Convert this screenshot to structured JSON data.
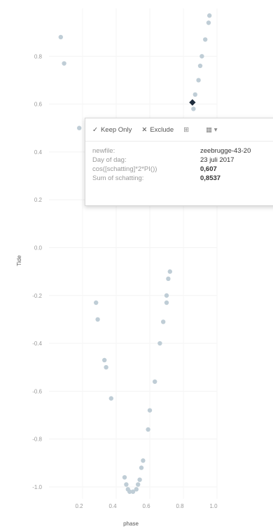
{
  "chart_data": {
    "type": "scatter",
    "xlabel": "phase",
    "ylabel": "Tide",
    "x_ticks": [
      "0.2",
      "0.4",
      "0.6",
      "0.8",
      "1.0"
    ],
    "y_ticks": [
      "0.8",
      "0.6",
      "0.4",
      "0.2",
      "0.0",
      "-0.2",
      "-0.4",
      "-0.6",
      "-0.8",
      "-1.0"
    ],
    "xlim": [
      0.0,
      1.0
    ],
    "ylim": [
      -1.05,
      1.0
    ],
    "grid": true,
    "point_color": "#bfcdd6",
    "selected_color": "#1f2d3d",
    "points": [
      {
        "x": 0.07,
        "y": 0.88
      },
      {
        "x": 0.09,
        "y": 0.77
      },
      {
        "x": 0.18,
        "y": 0.5
      },
      {
        "x": 0.86,
        "y": 0.58
      },
      {
        "x": 0.87,
        "y": 0.64
      },
      {
        "x": 0.9,
        "y": 0.76
      },
      {
        "x": 0.91,
        "y": 0.8
      },
      {
        "x": 0.93,
        "y": 0.87
      },
      {
        "x": 0.95,
        "y": 0.94
      },
      {
        "x": 0.955,
        "y": 0.97
      },
      {
        "x": 0.89,
        "y": 0.7
      },
      {
        "x": 0.72,
        "y": -0.1
      },
      {
        "x": 0.71,
        "y": -0.13
      },
      {
        "x": 0.7,
        "y": -0.2
      },
      {
        "x": 0.7,
        "y": -0.23
      },
      {
        "x": 0.68,
        "y": -0.31
      },
      {
        "x": 0.66,
        "y": -0.4
      },
      {
        "x": 0.63,
        "y": -0.56
      },
      {
        "x": 0.6,
        "y": -0.68
      },
      {
        "x": 0.59,
        "y": -0.76
      },
      {
        "x": 0.56,
        "y": -0.89
      },
      {
        "x": 0.55,
        "y": -0.92
      },
      {
        "x": 0.28,
        "y": -0.23
      },
      {
        "x": 0.29,
        "y": -0.3
      },
      {
        "x": 0.33,
        "y": -0.47
      },
      {
        "x": 0.34,
        "y": -0.5
      },
      {
        "x": 0.37,
        "y": -0.63
      },
      {
        "x": 0.45,
        "y": -0.96
      },
      {
        "x": 0.46,
        "y": -0.99
      },
      {
        "x": 0.47,
        "y": -1.01
      },
      {
        "x": 0.48,
        "y": -1.02
      },
      {
        "x": 0.5,
        "y": -1.02
      },
      {
        "x": 0.52,
        "y": -1.01
      },
      {
        "x": 0.53,
        "y": -0.99
      },
      {
        "x": 0.54,
        "y": -0.97
      }
    ],
    "selected_point": {
      "x": 0.8537,
      "y": 0.607
    }
  },
  "tooltip": {
    "keep_only": "Keep Only",
    "exclude": "Exclude",
    "rows": [
      {
        "label": "newfile:",
        "value": "zeebrugge-43-20"
      },
      {
        "label": "Day of dag:",
        "value": "23 juli 2017"
      },
      {
        "label": "cos([schatting]*2*PI())",
        "value": "0,607"
      },
      {
        "label": "Sum of schatting:",
        "value": "0,8537"
      }
    ]
  }
}
